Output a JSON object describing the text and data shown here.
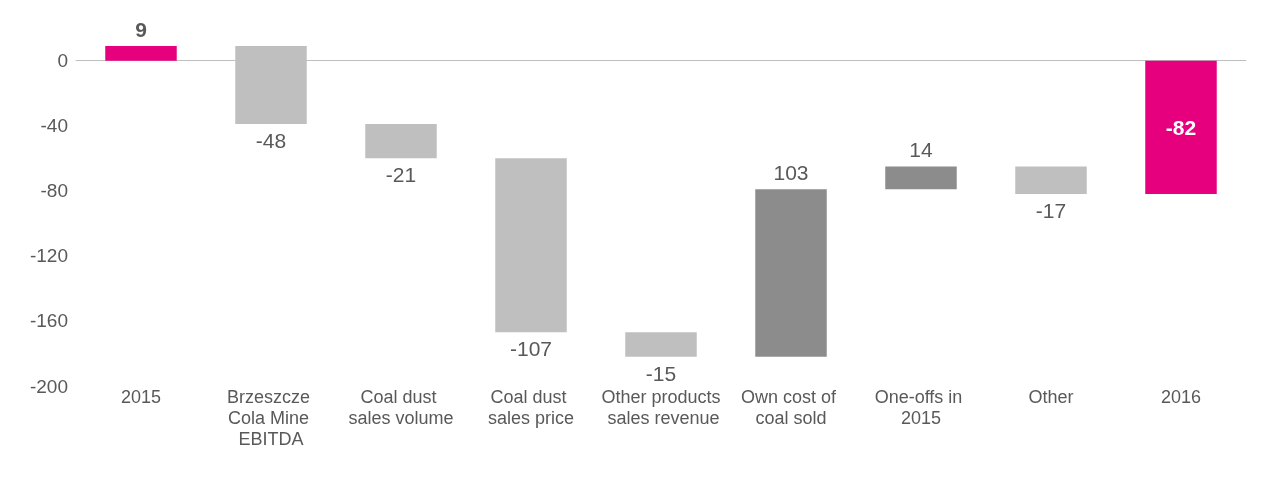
{
  "chart_data": {
    "type": "bar",
    "categories": [
      "2015",
      "Brzeszcze Cola Mine EBITDA",
      "Coal dust sales volume",
      "Coal dust sales price",
      "Other products sales revenue",
      "Own cost of coal sold",
      "One-offs in 2015",
      "Other",
      "2016"
    ],
    "values": [
      9,
      -48,
      -21,
      -107,
      -15,
      103,
      14,
      -17,
      -82
    ],
    "base": [
      0,
      9,
      -39,
      -60,
      -167,
      -182,
      -79,
      -65,
      0
    ],
    "colors": [
      "#e6007e",
      "#bfbfbf",
      "#bfbfbf",
      "#bfbfbf",
      "#bfbfbf",
      "#8c8c8c",
      "#8c8c8c",
      "#bfbfbf",
      "#e6007e"
    ],
    "value_labels": [
      "9",
      "-48",
      "-21",
      "-107",
      "-15",
      "103",
      "14",
      "-17",
      "-82"
    ],
    "ylim": [
      -200,
      9
    ],
    "yticks": [
      -200,
      -160,
      -120,
      -80,
      -40,
      0
    ]
  }
}
